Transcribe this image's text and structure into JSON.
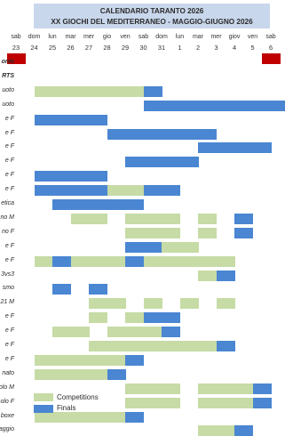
{
  "title": {
    "line1": "CALENDARIO TARANTO 2026",
    "line2": "XX GIOCHI DEL MEDITERRANEO - MAGGIO-GIUGNO 2026"
  },
  "days": [
    {
      "name": "sab",
      "num": "23",
      "holiday": true
    },
    {
      "name": "dom",
      "num": "24",
      "holiday": false
    },
    {
      "name": "lun",
      "num": "25",
      "holiday": false
    },
    {
      "name": "mar",
      "num": "26",
      "holiday": false
    },
    {
      "name": "mer",
      "num": "27",
      "holiday": false
    },
    {
      "name": "gio",
      "num": "28",
      "holiday": false
    },
    {
      "name": "ven",
      "num": "29",
      "holiday": false
    },
    {
      "name": "sab",
      "num": "30",
      "holiday": false
    },
    {
      "name": "dom",
      "num": "31",
      "holiday": false
    },
    {
      "name": "lun",
      "num": "1",
      "holiday": false
    },
    {
      "name": "mar",
      "num": "2",
      "holiday": false
    },
    {
      "name": "mer",
      "num": "3",
      "holiday": false
    },
    {
      "name": "giov",
      "num": "4",
      "holiday": false
    },
    {
      "name": "ven",
      "num": "5",
      "holiday": false
    },
    {
      "name": "sab",
      "num": "6",
      "holiday": true
    }
  ],
  "rows": [
    {
      "label": "onie",
      "bold": true,
      "cells": ""
    },
    {
      "label": "RTS",
      "bold": true,
      "cells": ""
    },
    {
      "label": "uoto",
      "bold": false,
      "cells": ".CCCCCCF......."
    },
    {
      "label": "uoto",
      "bold": false,
      "cells": ".......FFFFFFFF"
    },
    {
      "label": "e F",
      "bold": false,
      "cells": ".FFFF.........."
    },
    {
      "label": "e F",
      "bold": false,
      "cells": ".....FFFFFF...."
    },
    {
      "label": "e F",
      "bold": false,
      "cells": "..........FFFF."
    },
    {
      "label": "e F",
      "bold": false,
      "cells": "......FFFF....."
    },
    {
      "label": "e F",
      "bold": false,
      "cells": ".FFFF.........."
    },
    {
      "label": "e F",
      "bold": false,
      "cells": ".FFFFCCFF......"
    },
    {
      "label": "etica",
      "bold": false,
      "cells": "..FFFFF........"
    },
    {
      "label": "no M",
      "bold": false,
      "cells": "...CC.CCC.C.F.."
    },
    {
      "label": "no F",
      "bold": false,
      "cells": "......CCC.C.F.."
    },
    {
      "label": "e F",
      "bold": false,
      "cells": "......FFCC....."
    },
    {
      "label": "e F",
      "bold": false,
      "cells": ".CFCCCFCCCCC..."
    },
    {
      "label": "3vs3",
      "bold": false,
      "cells": "..........CF..."
    },
    {
      "label": "smo",
      "bold": false,
      "cells": "..F.F.........."
    },
    {
      "label": "21 M",
      "bold": false,
      "cells": "....CC.C.C.C..."
    },
    {
      "label": "e F",
      "bold": false,
      "cells": "....C.CFF......"
    },
    {
      "label": "e F",
      "bold": false,
      "cells": "..CC.CCCF......"
    },
    {
      "label": "e F",
      "bold": false,
      "cells": "....CCCCCCCF..."
    },
    {
      "label": "e F",
      "bold": false,
      "cells": ".CCCCCF........"
    },
    {
      "label": "nato",
      "bold": false,
      "cells": ".CCCCF........."
    },
    {
      "label": "olo M",
      "bold": false,
      "cells": "......CCC.CCCF."
    },
    {
      "label": "olo F",
      "bold": false,
      "cells": "......CCC.CCCF."
    },
    {
      "label": "boxe",
      "bold": false,
      "cells": ".CCCCCF........"
    },
    {
      "label": "aggio",
      "bold": false,
      "cells": "..........CCF.."
    }
  ],
  "legend": [
    {
      "label": "Competitions",
      "color": "#c6dba5"
    },
    {
      "label": "Finals",
      "color": "#4a86d2"
    }
  ],
  "colors": {
    "competition": "#c6dba5",
    "final": "#4a86d2",
    "holiday": "#c00000",
    "title_band": "#c9d7ec"
  }
}
